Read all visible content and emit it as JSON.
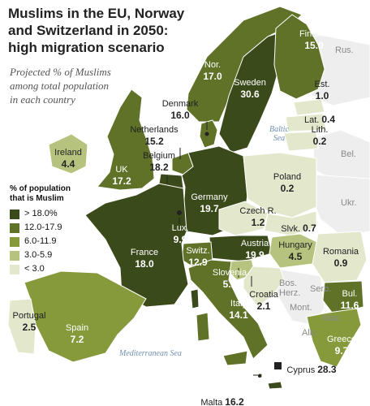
{
  "title": [
    "Muslims in the EU, Norway",
    "and Switzerland in 2050:",
    "high migration scenario"
  ],
  "subtitle": [
    "Projected % of Muslims",
    "among total population",
    "in each country"
  ],
  "legend": {
    "title": [
      "% of population",
      "that is Muslim"
    ],
    "items": [
      {
        "label": "> 18.0%",
        "color": "#3b4a1a"
      },
      {
        "label": "12.0-17.9",
        "color": "#5f7228"
      },
      {
        "label": "6.0-11.9",
        "color": "#869a3c"
      },
      {
        "label": "3.0-5.9",
        "color": "#b5c37e"
      },
      {
        "label": "< 3.0",
        "color": "#e3e8cc"
      }
    ]
  },
  "colors": {
    "neighbor": "#eeeeee",
    "sea": "#ffffff",
    "border": "#ffffff",
    "sea_label": "#6f8fb3"
  },
  "countries": [
    {
      "name": "Finland",
      "value": "15.0"
    },
    {
      "name": "Nor.",
      "value": "17.0"
    },
    {
      "name": "Sweden",
      "value": "30.6"
    },
    {
      "name": "Est.",
      "value": "1.0"
    },
    {
      "name": "Lat.",
      "value": "0.4"
    },
    {
      "name": "Lith.",
      "value": "0.2"
    },
    {
      "name": "Denmark",
      "value": "16.0"
    },
    {
      "name": "Netherlands",
      "value": "15.2"
    },
    {
      "name": "Ireland",
      "value": "4.4"
    },
    {
      "name": "Belgium",
      "value": "18.2"
    },
    {
      "name": "UK",
      "value": "17.2"
    },
    {
      "name": "Poland",
      "value": "0.2"
    },
    {
      "name": "Germany",
      "value": "19.7"
    },
    {
      "name": "Czech R.",
      "value": "1.2"
    },
    {
      "name": "Slvk.",
      "value": "0.7"
    },
    {
      "name": "Lux.",
      "value": "9.9"
    },
    {
      "name": "France",
      "value": "18.0"
    },
    {
      "name": "Switz.",
      "value": "12.9"
    },
    {
      "name": "Austria",
      "value": "19.9"
    },
    {
      "name": "Hungary",
      "value": "4.5"
    },
    {
      "name": "Romania",
      "value": "0.9"
    },
    {
      "name": "Slovenia",
      "value": "5.2"
    },
    {
      "name": "Croatia",
      "value": "2.1"
    },
    {
      "name": "Italy",
      "value": "14.1"
    },
    {
      "name": "Bul.",
      "value": "11.6"
    },
    {
      "name": "Portugal",
      "value": "2.5"
    },
    {
      "name": "Spain",
      "value": "7.2"
    },
    {
      "name": "Greece",
      "value": "9.7"
    },
    {
      "name": "Cyprus",
      "value": "28.3"
    },
    {
      "name": "Malta",
      "value": "16.2"
    }
  ],
  "non_members": [
    "Rus.",
    "Bel.",
    "Ukr.",
    "Serb.",
    "Bos.",
    "Herz.",
    "Mont.",
    "Alb.",
    "Mac."
  ],
  "seas": {
    "baltic": [
      "Baltic",
      "Sea"
    ],
    "mediterranean": "Mediterranean Sea"
  }
}
